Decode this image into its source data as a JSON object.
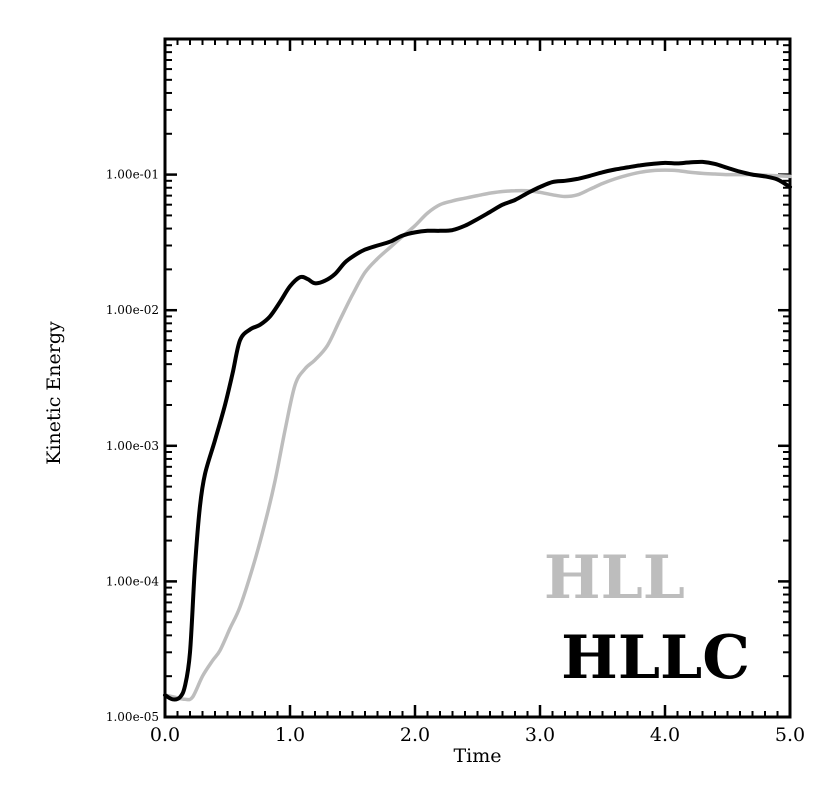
{
  "chart_data": {
    "type": "line",
    "xlabel": "Time",
    "ylabel": "Kinetic Energy",
    "xlim": [
      0,
      5
    ],
    "ylim": [
      1e-05,
      1
    ],
    "yscale": "log",
    "x_ticks": [
      0,
      1,
      2,
      3,
      4,
      5
    ],
    "x_tick_labels": [
      "0.0",
      "1.0",
      "2.0",
      "3.0",
      "4.0",
      "5.0"
    ],
    "y_ticks": [
      1e-05,
      0.0001,
      0.001,
      0.01,
      0.1
    ],
    "y_tick_labels": [
      "1.00e-05",
      "1.00e-04",
      "1.00e-03",
      "1.00e-02",
      "1.00e-01"
    ],
    "grid": false,
    "legend_placement": "bottom-right",
    "series": [
      {
        "name": "HLL",
        "color": "#bdbdbd",
        "points": [
          [
            0.0,
            1.45e-05
          ],
          [
            0.08,
            1.4e-05
          ],
          [
            0.16,
            1.35e-05
          ],
          [
            0.22,
            1.4e-05
          ],
          [
            0.3,
            2e-05
          ],
          [
            0.38,
            2.6e-05
          ],
          [
            0.44,
            3.1e-05
          ],
          [
            0.52,
            4.5e-05
          ],
          [
            0.6,
            6.5e-05
          ],
          [
            0.7,
            0.000125
          ],
          [
            0.8,
            0.00027
          ],
          [
            0.88,
            0.00055
          ],
          [
            0.96,
            0.0013
          ],
          [
            1.04,
            0.0028
          ],
          [
            1.12,
            0.0037
          ],
          [
            1.2,
            0.0043
          ],
          [
            1.3,
            0.0055
          ],
          [
            1.4,
            0.0085
          ],
          [
            1.5,
            0.013
          ],
          [
            1.6,
            0.019
          ],
          [
            1.7,
            0.024
          ],
          [
            1.8,
            0.029
          ],
          [
            1.9,
            0.035
          ],
          [
            2.0,
            0.042
          ],
          [
            2.1,
            0.052
          ],
          [
            2.2,
            0.06
          ],
          [
            2.3,
            0.064
          ],
          [
            2.4,
            0.067
          ],
          [
            2.5,
            0.07
          ],
          [
            2.6,
            0.073
          ],
          [
            2.7,
            0.075
          ],
          [
            2.8,
            0.076
          ],
          [
            2.9,
            0.076
          ],
          [
            3.0,
            0.074
          ],
          [
            3.1,
            0.071
          ],
          [
            3.2,
            0.069
          ],
          [
            3.3,
            0.071
          ],
          [
            3.4,
            0.078
          ],
          [
            3.5,
            0.086
          ],
          [
            3.6,
            0.093
          ],
          [
            3.7,
            0.099
          ],
          [
            3.8,
            0.104
          ],
          [
            3.9,
            0.107
          ],
          [
            4.0,
            0.108
          ],
          [
            4.1,
            0.107
          ],
          [
            4.2,
            0.104
          ],
          [
            4.3,
            0.102
          ],
          [
            4.4,
            0.101
          ],
          [
            4.5,
            0.1
          ],
          [
            4.6,
            0.1
          ],
          [
            4.7,
            0.1
          ],
          [
            4.8,
            0.099
          ],
          [
            4.9,
            0.098
          ],
          [
            5.0,
            0.097
          ]
        ]
      },
      {
        "name": "HLLC",
        "color": "#000000",
        "points": [
          [
            0.0,
            1.45e-05
          ],
          [
            0.06,
            1.35e-05
          ],
          [
            0.12,
            1.4e-05
          ],
          [
            0.16,
            1.7e-05
          ],
          [
            0.2,
            3e-05
          ],
          [
            0.24,
            0.00013
          ],
          [
            0.28,
            0.00036
          ],
          [
            0.32,
            0.00062
          ],
          [
            0.4,
            0.0011
          ],
          [
            0.48,
            0.002
          ],
          [
            0.54,
            0.0034
          ],
          [
            0.6,
            0.006
          ],
          [
            0.68,
            0.0072
          ],
          [
            0.76,
            0.0078
          ],
          [
            0.84,
            0.009
          ],
          [
            0.92,
            0.0115
          ],
          [
            1.0,
            0.015
          ],
          [
            1.08,
            0.0175
          ],
          [
            1.14,
            0.017
          ],
          [
            1.2,
            0.0158
          ],
          [
            1.28,
            0.0165
          ],
          [
            1.36,
            0.0185
          ],
          [
            1.44,
            0.0225
          ],
          [
            1.52,
            0.0255
          ],
          [
            1.6,
            0.028
          ],
          [
            1.7,
            0.03
          ],
          [
            1.8,
            0.032
          ],
          [
            1.9,
            0.0355
          ],
          [
            2.0,
            0.0375
          ],
          [
            2.1,
            0.0385
          ],
          [
            2.2,
            0.0385
          ],
          [
            2.3,
            0.039
          ],
          [
            2.4,
            0.042
          ],
          [
            2.5,
            0.047
          ],
          [
            2.6,
            0.053
          ],
          [
            2.7,
            0.06
          ],
          [
            2.8,
            0.065
          ],
          [
            2.9,
            0.073
          ],
          [
            3.0,
            0.081
          ],
          [
            3.1,
            0.088
          ],
          [
            3.2,
            0.09
          ],
          [
            3.3,
            0.093
          ],
          [
            3.4,
            0.098
          ],
          [
            3.5,
            0.104
          ],
          [
            3.6,
            0.109
          ],
          [
            3.7,
            0.113
          ],
          [
            3.8,
            0.117
          ],
          [
            3.9,
            0.12
          ],
          [
            4.0,
            0.122
          ],
          [
            4.1,
            0.121
          ],
          [
            4.2,
            0.123
          ],
          [
            4.3,
            0.124
          ],
          [
            4.4,
            0.12
          ],
          [
            4.5,
            0.112
          ],
          [
            4.6,
            0.105
          ],
          [
            4.7,
            0.1
          ],
          [
            4.8,
            0.097
          ],
          [
            4.9,
            0.092
          ],
          [
            5.0,
            0.081
          ]
        ]
      }
    ]
  }
}
